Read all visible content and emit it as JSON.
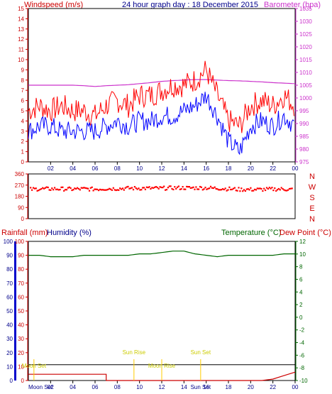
{
  "header": {
    "left_title": "Windspeed (m/s)",
    "center_title": "24 hour graph day : 18 December 2015",
    "right_title": "Barometer (hpa)"
  },
  "colors": {
    "windspeed": "#ff0000",
    "gust": "#ff0000",
    "barometer": "#cc33cc",
    "wind_avg": "#0000ff",
    "direction": "#ff0000",
    "humidity": "#006600",
    "rainfall": "#cc0000",
    "temperature": "#006600",
    "dewpoint": "#cc0000",
    "sunmoon": "#ffcc00",
    "axis_text": "#00008b"
  },
  "chart_data": [
    {
      "type": "line",
      "title": "24 hour graph day : 18 December 2015",
      "ylabel": "Windspeed (m/s)",
      "ylabel_right": "Barometer (hpa)",
      "ylim": [
        0,
        15
      ],
      "ylim_right": [
        975,
        1035
      ],
      "yticks": [
        "0",
        "1",
        "2",
        "3",
        "4",
        "5",
        "6",
        "7",
        "8",
        "9",
        "10",
        "11",
        "12",
        "13",
        "14",
        "15"
      ],
      "yticks_right": [
        "975",
        "980",
        "985",
        "990",
        "995",
        "1000",
        "1005",
        "1010",
        "1015",
        "1020",
        "1025",
        "1030",
        "1035"
      ],
      "xticks": [
        "02",
        "04",
        "06",
        "08",
        "10",
        "12",
        "14",
        "16",
        "18",
        "20",
        "22",
        "00"
      ],
      "x": [
        0,
        1,
        2,
        3,
        4,
        5,
        6,
        7,
        8,
        9,
        10,
        11,
        12,
        13,
        14,
        15,
        16,
        17,
        18,
        19,
        20,
        21,
        22,
        23,
        24
      ],
      "series": [
        {
          "key": "gust",
          "values": [
            5,
            5.5,
            5,
            5.5,
            5,
            5,
            4.5,
            5.5,
            6,
            5.5,
            6.5,
            6.5,
            7,
            7.5,
            7.5,
            8,
            9,
            6.5,
            4,
            3.5,
            5.5,
            6,
            5.5,
            6.5,
            5.5
          ]
        },
        {
          "key": "windspeed",
          "values": [
            3,
            3.5,
            3.5,
            3,
            3,
            3,
            3,
            3.5,
            4,
            3.5,
            4,
            4,
            4.5,
            4.5,
            5,
            5.5,
            6.5,
            4.5,
            2,
            1,
            3.5,
            4,
            3.5,
            4.5,
            3.5
          ]
        },
        {
          "key": "barometer",
          "values": [
            1005,
            1005,
            1005,
            1005,
            1005,
            1004.8,
            1004.5,
            1004.8,
            1005,
            1005.2,
            1005.6,
            1006,
            1006.5,
            1006.8,
            1007,
            1007.2,
            1007.2,
            1007,
            1006.8,
            1006.7,
            1006.5,
            1006.3,
            1006,
            1005.8,
            1005.6
          ]
        }
      ]
    },
    {
      "type": "scatter",
      "ylabel_right": [
        "N",
        "W",
        "S",
        "E",
        "N"
      ],
      "ylim": [
        0,
        360
      ],
      "yticks": [
        "0",
        "90",
        "180",
        "270",
        "360"
      ],
      "x": [
        0,
        1,
        2,
        3,
        4,
        5,
        6,
        7,
        8,
        9,
        10,
        11,
        12,
        13,
        14,
        15,
        16,
        17,
        18,
        19,
        20,
        21,
        22,
        23,
        24
      ],
      "series": [
        {
          "key": "direction",
          "values": [
            235,
            240,
            240,
            240,
            238,
            240,
            238,
            242,
            242,
            245,
            245,
            245,
            245,
            248,
            248,
            248,
            248,
            245,
            240,
            235,
            235,
            235,
            238,
            238,
            235
          ]
        }
      ]
    },
    {
      "type": "line",
      "ylabel": "Rainfall (mm)",
      "ylabel2": "Humidity (%)",
      "ylabel_right": "Temperature (°C)",
      "ylabel_right2": "Dew Point (°C)",
      "ylim": [
        0,
        100
      ],
      "ylim_right": [
        -10,
        12
      ],
      "yticks": [
        "0",
        "10",
        "20",
        "30",
        "40",
        "50",
        "60",
        "70",
        "80",
        "90",
        "100"
      ],
      "yticks_right": [
        "-10",
        "-8",
        "-6",
        "-4",
        "-2",
        "0",
        "2",
        "4",
        "6",
        "8",
        "10",
        "12"
      ],
      "markers": [
        {
          "label": "Moon Set",
          "x": 0.5
        },
        {
          "label": "Sun Rise",
          "x": 9.5
        },
        {
          "label": "Moon Rise",
          "x": 12
        },
        {
          "label": "Sun Set",
          "x": 15.5
        }
      ],
      "x": [
        0,
        1,
        2,
        3,
        4,
        5,
        6,
        7,
        8,
        9,
        10,
        11,
        12,
        13,
        14,
        15,
        16,
        17,
        18,
        19,
        20,
        21,
        22,
        23,
        24
      ],
      "series": [
        {
          "key": "humidity",
          "values": [
            90,
            90,
            89,
            89,
            89,
            90,
            90,
            90,
            90,
            90,
            91,
            91,
            92,
            93,
            93,
            91,
            90,
            89,
            90,
            90,
            90,
            90,
            90,
            91,
            91
          ]
        },
        {
          "key": "rainfall",
          "values": [
            4.5,
            4.5,
            4.5,
            4.5,
            4.5,
            4.5,
            4.5,
            0,
            0,
            0,
            0,
            0,
            0,
            0,
            0,
            0,
            0,
            0,
            0,
            0,
            0,
            0,
            0,
            3,
            6
          ]
        },
        {
          "key": "temperature",
          "values": [
            -8.5,
            -8.5,
            -8.5,
            -8.5,
            -8.5,
            -8.5,
            -8.5,
            -8.5,
            -8.5,
            -8.5,
            -8.5,
            -8.5,
            -8.5,
            -8.5,
            -8.5,
            -8.5,
            -8.5,
            -8.5,
            -8.5,
            -8.5,
            -8.5,
            -8.5,
            -8.5,
            -8.5,
            -8.5
          ]
        },
        {
          "key": "dewpoint",
          "values": [
            -7.5,
            -7.5,
            -7.5,
            -7.5,
            -7.5,
            -7.5,
            -7.5,
            -7.5,
            -7.5,
            -7.5,
            -7.5,
            -7.5,
            -7.5,
            -7.5,
            -7.5,
            -7.5,
            -7.5,
            -7.5,
            -7.5,
            -7.5,
            -7.5,
            -7.5,
            -7.5,
            -7.5,
            -7.5
          ]
        }
      ]
    }
  ]
}
